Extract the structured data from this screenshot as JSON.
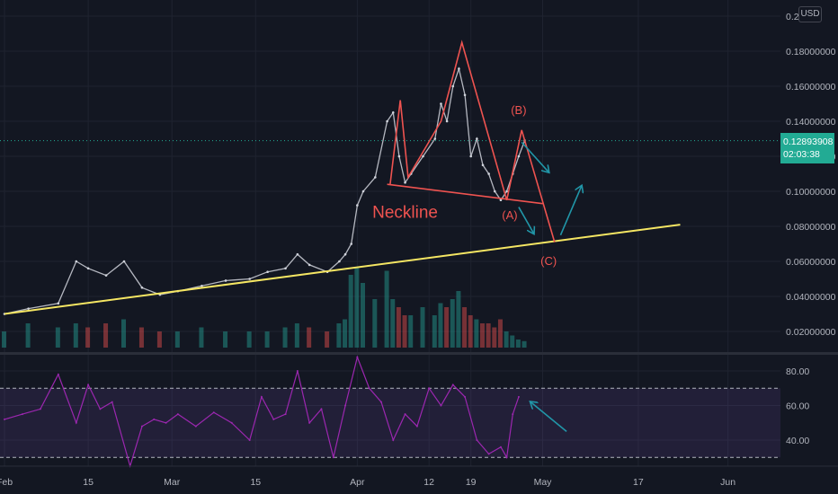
{
  "currency_badge": "USD",
  "last_price": {
    "value": "0.12893908",
    "countdown": "02:03:38",
    "price": 0.1289,
    "color": "#22ab94"
  },
  "chart_data": [
    {
      "type": "line",
      "title": "",
      "xlabel": "",
      "ylabel": "",
      "ylim": [
        0.01,
        0.2
      ],
      "y_ticks": [
        "0.02000000",
        "0.04000000",
        "0.06000000",
        "0.08000000",
        "0.10000000",
        "0.12000000",
        "0.14000000",
        "0.16000000",
        "0.18000000",
        "0.2"
      ],
      "y_tick_values": [
        0.02,
        0.04,
        0.06,
        0.08,
        0.1,
        0.12,
        0.14,
        0.16,
        0.18,
        0.2
      ],
      "x_ticks": [
        "Feb",
        "15",
        "Mar",
        "15",
        "Apr",
        "12",
        "19",
        "May",
        "17",
        "Jun"
      ],
      "x_tick_days": [
        1,
        15,
        29,
        43,
        60,
        72,
        79,
        91,
        107,
        122
      ],
      "grid": true,
      "series": [
        {
          "color": "#d1d4dc",
          "x_days": [
            1,
            5,
            10,
            13,
            15,
            18,
            21,
            24,
            27,
            30,
            34,
            38,
            42,
            45,
            48,
            50,
            52,
            55,
            57,
            58,
            59,
            60,
            61,
            63,
            65,
            66,
            67,
            68,
            69,
            71,
            73,
            74,
            75,
            76,
            77,
            78,
            79,
            80,
            81,
            82,
            83,
            84,
            85,
            86,
            87,
            88
          ],
          "values": [
            0.03,
            0.033,
            0.036,
            0.06,
            0.056,
            0.052,
            0.06,
            0.045,
            0.041,
            0.043,
            0.046,
            0.049,
            0.05,
            0.054,
            0.056,
            0.064,
            0.058,
            0.054,
            0.06,
            0.064,
            0.07,
            0.092,
            0.1,
            0.108,
            0.14,
            0.145,
            0.12,
            0.105,
            0.11,
            0.12,
            0.13,
            0.15,
            0.14,
            0.16,
            0.17,
            0.155,
            0.12,
            0.13,
            0.115,
            0.11,
            0.1,
            0.095,
            0.1,
            0.11,
            0.12,
            0.129
          ]
        }
      ],
      "volume": {
        "color_up": "#26a69a",
        "color_down": "#ef5350",
        "x_days": [
          1,
          5,
          10,
          13,
          15,
          18,
          21,
          24,
          27,
          30,
          34,
          38,
          42,
          45,
          48,
          50,
          52,
          55,
          57,
          58,
          59,
          60,
          61,
          63,
          65,
          66,
          67,
          68,
          69,
          71,
          73,
          74,
          75,
          76,
          77,
          78,
          79,
          80,
          81,
          82,
          83,
          84,
          85,
          86,
          87,
          88
        ],
        "values": [
          0.2,
          0.3,
          0.25,
          0.3,
          0.25,
          0.3,
          0.35,
          0.25,
          0.2,
          0.2,
          0.25,
          0.2,
          0.2,
          0.2,
          0.25,
          0.3,
          0.25,
          0.2,
          0.3,
          0.35,
          0.9,
          1.0,
          0.8,
          0.6,
          0.95,
          0.6,
          0.5,
          0.4,
          0.4,
          0.5,
          0.4,
          0.55,
          0.5,
          0.6,
          0.7,
          0.5,
          0.4,
          0.35,
          0.3,
          0.3,
          0.25,
          0.35,
          0.2,
          0.15,
          0.1,
          0.08
        ]
      },
      "annotations": [
        {
          "text": "Neckline",
          "color": "#ef5350",
          "x_day": 67,
          "y": 0.085
        },
        {
          "text": "(A)",
          "color": "#ef5350",
          "x_day": 84.5,
          "y": 0.084
        },
        {
          "text": "(B)",
          "color": "#ef5350",
          "x_day": 86,
          "y": 0.144
        },
        {
          "text": "(C)",
          "color": "#ef5350",
          "x_day": 91,
          "y": 0.058
        }
      ],
      "drawings": [
        {
          "kind": "trendline",
          "color": "#f5e663",
          "points": [
            [
              0,
              0.03
            ],
            [
              113,
              0.081
            ]
          ]
        },
        {
          "kind": "neckline",
          "color": "#ef5350",
          "points": [
            [
              64,
              0.104
            ],
            [
              90,
              0.093
            ]
          ]
        },
        {
          "kind": "pattern",
          "color": "#ef5350",
          "points": [
            [
              64.5,
              0.104
            ],
            [
              66.2,
              0.152
            ],
            [
              67.5,
              0.108
            ],
            [
              73,
              0.14
            ],
            [
              76.5,
              0.185
            ],
            [
              84,
              0.095
            ],
            [
              86.5,
              0.135
            ],
            [
              92,
              0.071
            ]
          ]
        },
        {
          "kind": "arrow",
          "color": "#2196a8",
          "points": [
            [
              86.5,
              0.128
            ],
            [
              91,
              0.111
            ]
          ]
        },
        {
          "kind": "arrow",
          "color": "#2196a8",
          "points": [
            [
              86,
              0.091
            ],
            [
              88.5,
              0.076
            ]
          ]
        },
        {
          "kind": "arrow",
          "color": "#2196a8",
          "points": [
            [
              93,
              0.075
            ],
            [
              96.5,
              0.103
            ]
          ]
        }
      ]
    },
    {
      "type": "line",
      "title": "",
      "ylim": [
        23,
        87
      ],
      "y_ticks": [
        "40.00",
        "60.00",
        "80.00"
      ],
      "y_tick_values": [
        40,
        60,
        80
      ],
      "band": [
        30,
        70
      ],
      "band_color": "#7e57c2",
      "series": [
        {
          "color": "#9c27b0",
          "x_days": [
            1,
            4,
            7,
            10,
            13,
            15,
            17,
            19,
            22,
            24,
            26,
            28,
            30,
            33,
            36,
            39,
            42,
            44,
            46,
            48,
            50,
            52,
            54,
            56,
            58,
            60,
            62,
            64,
            66,
            68,
            70,
            72,
            74,
            76,
            78,
            80,
            82,
            84,
            85,
            86,
            87
          ],
          "values": [
            52,
            55,
            58,
            78,
            50,
            72,
            58,
            62,
            25,
            48,
            52,
            50,
            55,
            48,
            56,
            50,
            40,
            65,
            52,
            55,
            80,
            50,
            58,
            30,
            60,
            88,
            70,
            62,
            40,
            55,
            48,
            70,
            60,
            72,
            65,
            40,
            32,
            36,
            30,
            55,
            65
          ]
        }
      ],
      "drawings": [
        {
          "kind": "arrow",
          "color": "#2196a8",
          "points": [
            [
              94,
              45
            ],
            [
              88,
              62
            ]
          ]
        }
      ]
    }
  ]
}
